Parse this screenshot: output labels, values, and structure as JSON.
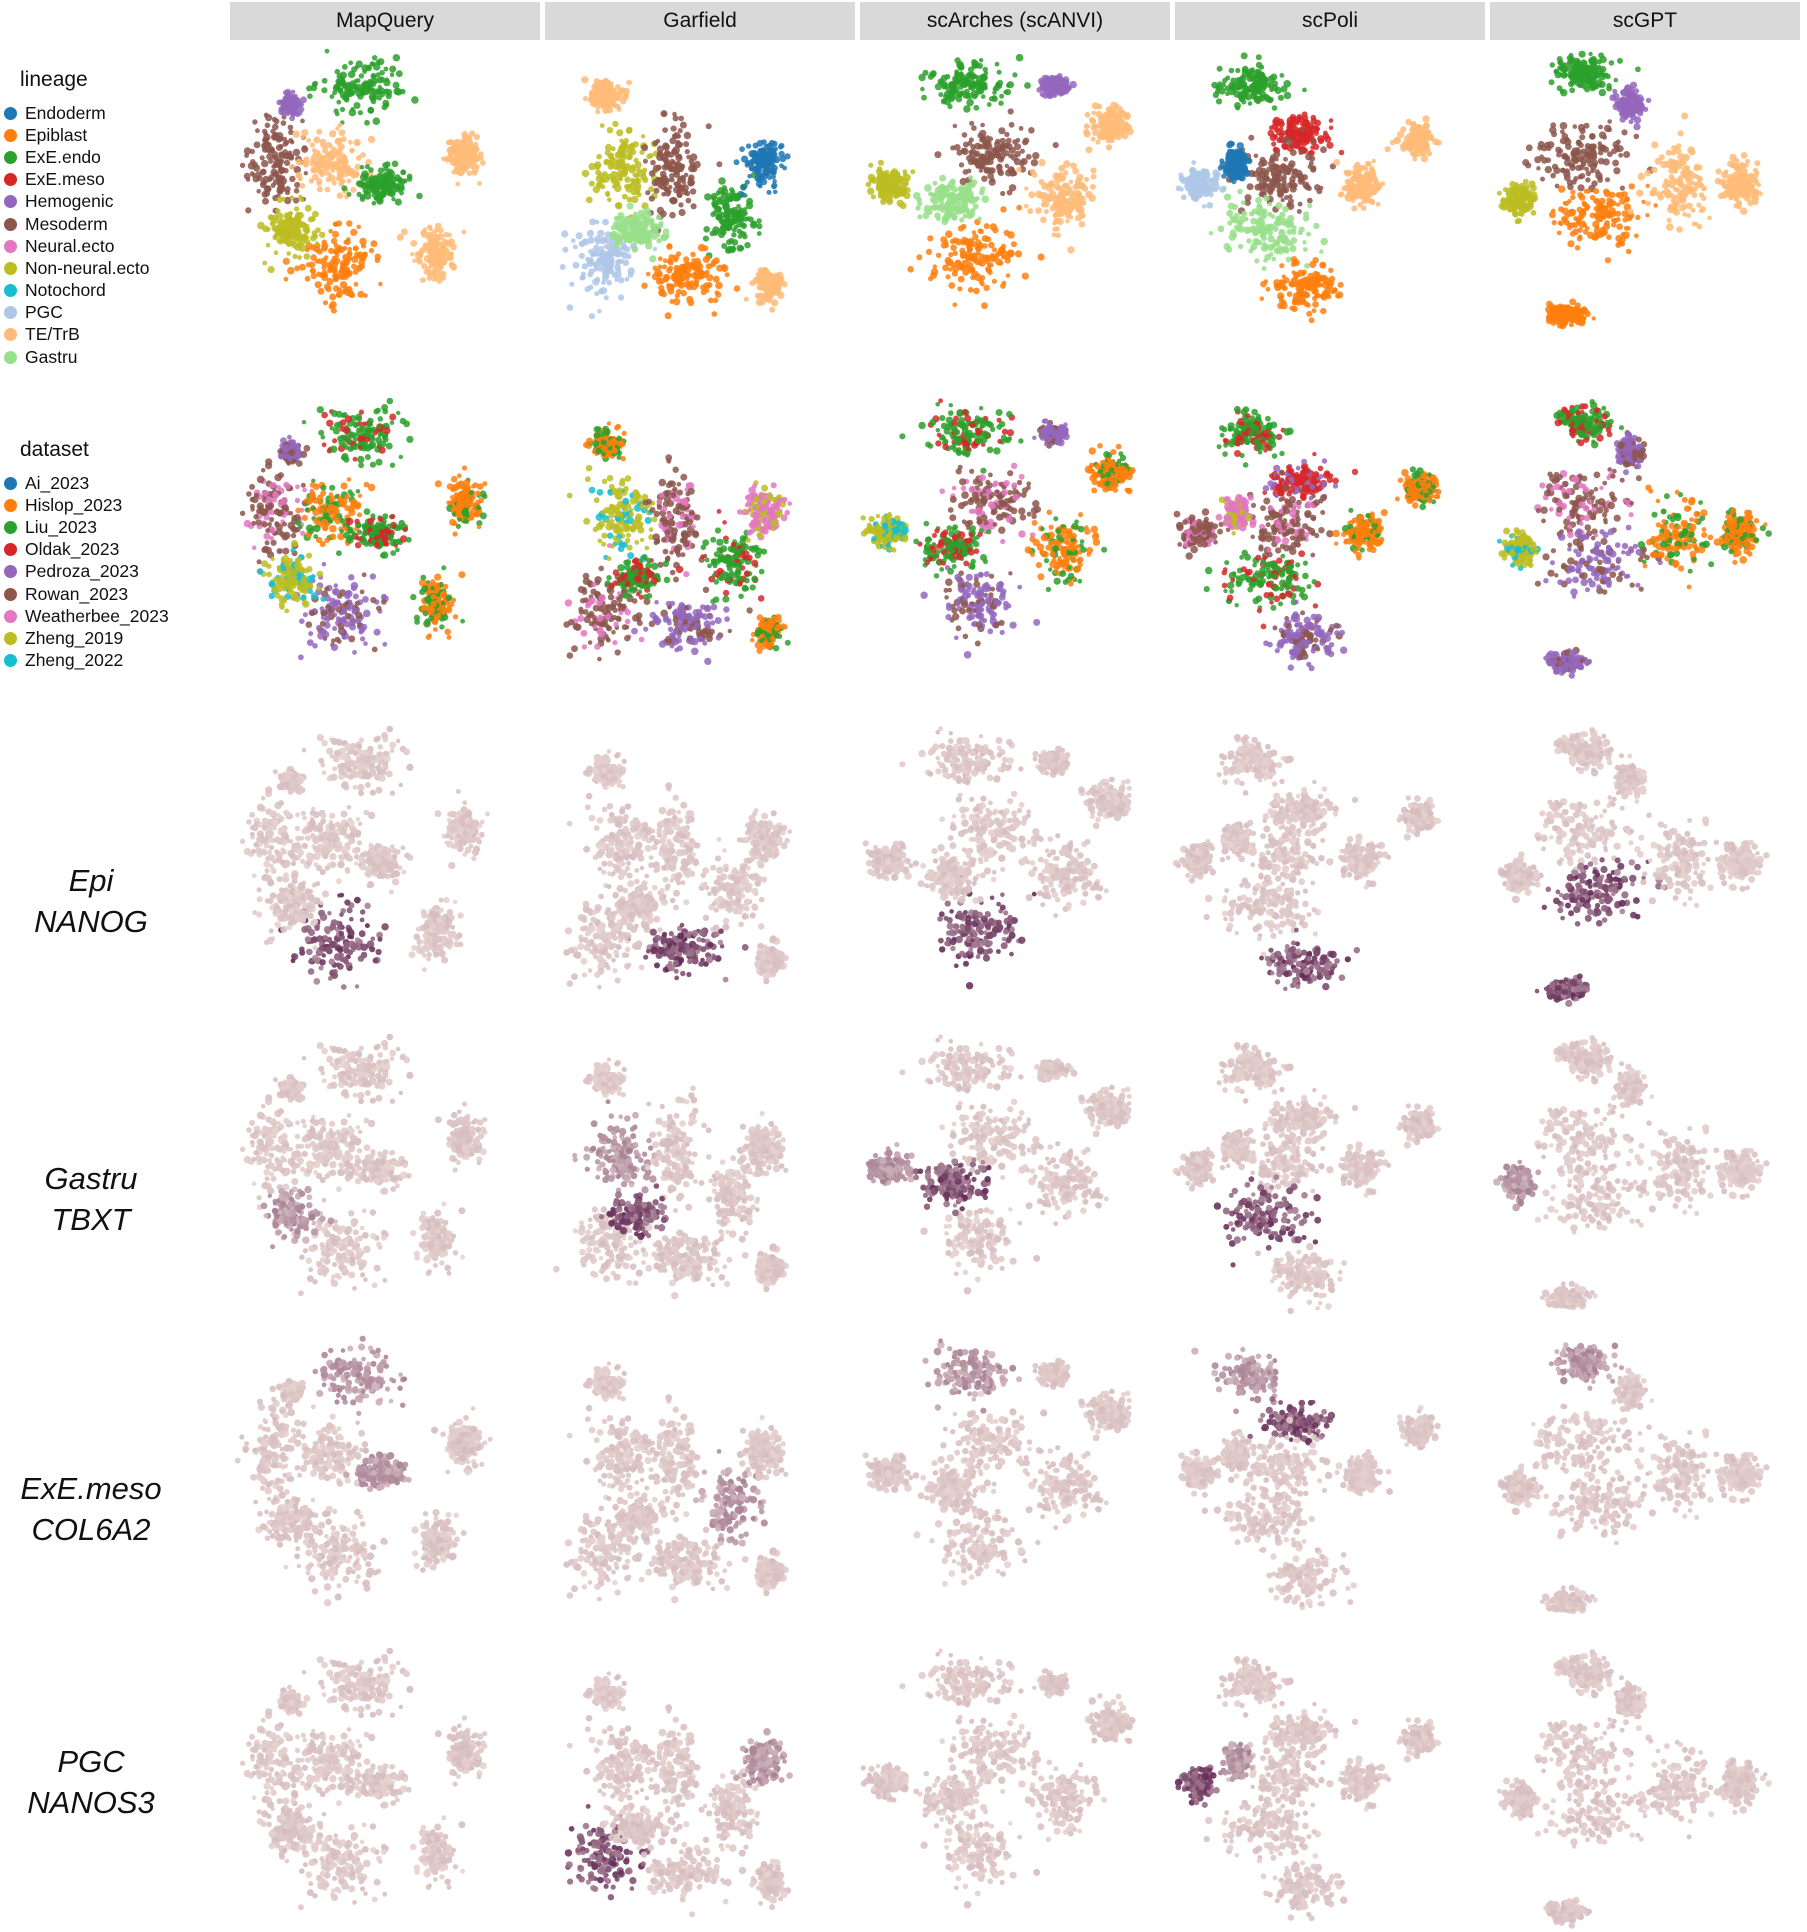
{
  "methods": [
    "MapQuery",
    "Garfield",
    "scArches (scANVI)",
    "scPoli",
    "scGPT"
  ],
  "legend_lineage": {
    "title": "lineage",
    "items": [
      {
        "label": "Endoderm",
        "color": "#1f77b4"
      },
      {
        "label": "Epiblast",
        "color": "#ff7f0e"
      },
      {
        "label": "ExE.endo",
        "color": "#2ca02c"
      },
      {
        "label": "ExE.meso",
        "color": "#d62728"
      },
      {
        "label": "Hemogenic",
        "color": "#9467bd"
      },
      {
        "label": "Mesoderm",
        "color": "#8c564b"
      },
      {
        "label": "Neural.ecto",
        "color": "#e377c2"
      },
      {
        "label": "Non-neural.ecto",
        "color": "#bcbd22"
      },
      {
        "label": "Notochord",
        "color": "#17becf"
      },
      {
        "label": "PGC",
        "color": "#aec7e8"
      },
      {
        "label": "TE/TrB",
        "color": "#ffbb78"
      },
      {
        "label": "Gastru",
        "color": "#98df8a"
      }
    ]
  },
  "legend_dataset": {
    "title": "dataset",
    "items": [
      {
        "label": "Ai_2023",
        "color": "#1f77b4"
      },
      {
        "label": "Hislop_2023",
        "color": "#ff7f0e"
      },
      {
        "label": "Liu_2023",
        "color": "#2ca02c"
      },
      {
        "label": "Oldak_2023",
        "color": "#d62728"
      },
      {
        "label": "Pedroza_2023",
        "color": "#9467bd"
      },
      {
        "label": "Rowan_2023",
        "color": "#8c564b"
      },
      {
        "label": "Weatherbee_2023",
        "color": "#e377c2"
      },
      {
        "label": "Zheng_2019",
        "color": "#bcbd22"
      },
      {
        "label": "Zheng_2022",
        "color": "#17becf"
      }
    ]
  },
  "gene_rows": [
    {
      "lineage": "Epi",
      "gene": "NANOG"
    },
    {
      "lineage": "Gastru",
      "gene": "TBXT"
    },
    {
      "lineage": "ExE.meso",
      "gene": "COL6A2"
    },
    {
      "lineage": "PGC",
      "gene": "NANOS3"
    }
  ],
  "expression_colors": {
    "low": "#eedcd6",
    "high": "#5a1e4e"
  },
  "chart_data": {
    "type": "scatter",
    "title": "",
    "xlabel": "",
    "ylabel": "",
    "columns": [
      "MapQuery",
      "Garfield",
      "scArches (scANVI)",
      "scPoli",
      "scGPT"
    ],
    "rows": [
      "lineage",
      "dataset",
      "Epi NANOG",
      "Gastru TBXT",
      "ExE.meso COL6A2",
      "PGC NANOS3"
    ],
    "grid": false
  }
}
